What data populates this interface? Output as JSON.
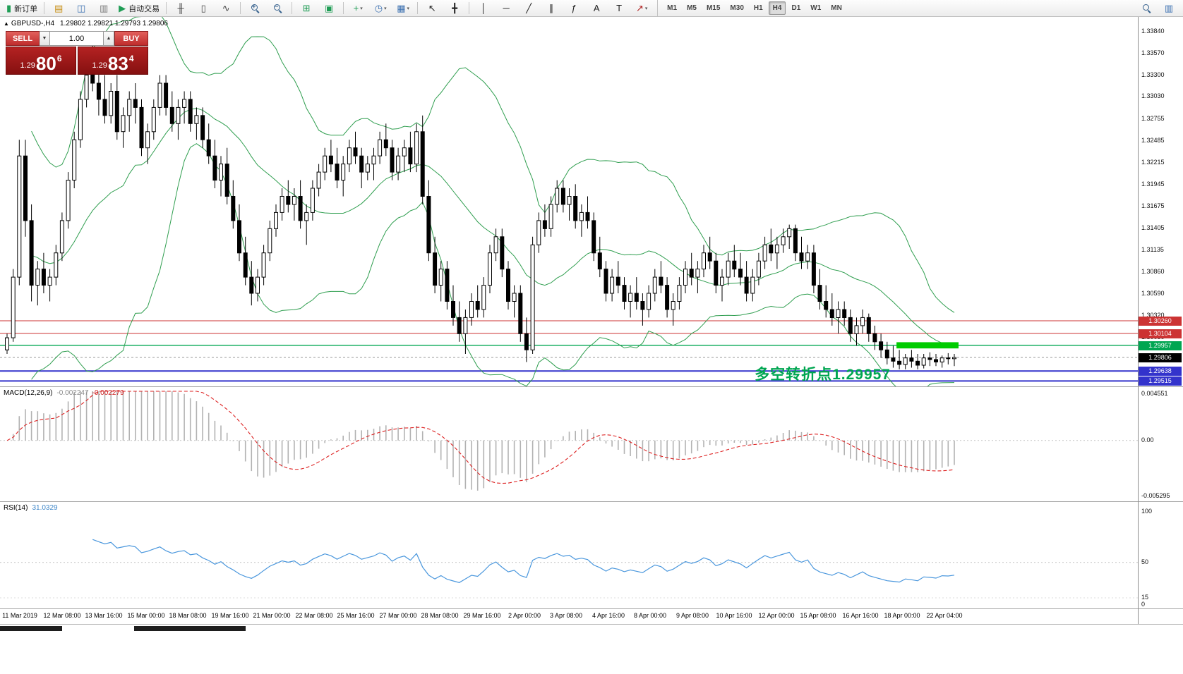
{
  "toolbar": {
    "groups": [
      {
        "items": [
          {
            "name": "new-order-button",
            "glyph": "▮",
            "glyph_color": "#1f9d55",
            "label": "新订单"
          }
        ]
      },
      {
        "items": [
          {
            "name": "market-watch-icon",
            "glyph": "▤",
            "glyph_color": "#c89018"
          },
          {
            "name": "data-window-icon",
            "glyph": "◫",
            "glyph_color": "#3a6fb0"
          },
          {
            "name": "navigator-icon",
            "glyph": "▥",
            "glyph_color": "#7a7a7a"
          },
          {
            "name": "autotrading-button",
            "glyph": "▶",
            "glyph_color": "#1f9d55",
            "label": "自动交易"
          }
        ]
      },
      {
        "items": [
          {
            "name": "bar-chart-icon",
            "glyph": "╫",
            "glyph_color": "#444444"
          },
          {
            "name": "candlestick-icon",
            "glyph": "▯",
            "glyph_color": "#444444"
          },
          {
            "name": "line-chart-icon",
            "glyph": "∿",
            "glyph_color": "#444444"
          }
        ]
      },
      {
        "items": [
          {
            "name": "zoom-in-icon",
            "css": "mag-plus"
          },
          {
            "name": "zoom-out-icon",
            "css": "mag-minus"
          }
        ]
      },
      {
        "items": [
          {
            "name": "tile-windows-icon",
            "glyph": "⊞",
            "glyph_color": "#1f9d55"
          },
          {
            "name": "cascade-windows-icon",
            "glyph": "▣",
            "glyph_color": "#1f9d55"
          }
        ]
      },
      {
        "items": [
          {
            "name": "indicators-icon",
            "glyph": "+",
            "glyph_color": "#1f9d55",
            "caret": true
          },
          {
            "name": "periods-icon",
            "glyph": "◷",
            "glyph_color": "#3a6fb0",
            "caret": true
          },
          {
            "name": "templates-icon",
            "glyph": "▦",
            "glyph_color": "#3a6fb0",
            "caret": true
          }
        ]
      },
      {
        "items": [
          {
            "name": "cursor-icon",
            "glyph": "↖",
            "glyph_color": "#222222"
          },
          {
            "name": "crosshair-icon",
            "glyph": "╋",
            "glyph_color": "#222222"
          }
        ]
      },
      {
        "items": [
          {
            "name": "vertical-line-icon",
            "glyph": "│",
            "glyph_color": "#222222"
          },
          {
            "name": "horizontal-line-icon",
            "glyph": "─",
            "glyph_color": "#222222"
          },
          {
            "name": "trendline-icon",
            "glyph": "╱",
            "glyph_color": "#222222"
          },
          {
            "name": "channel-icon",
            "glyph": "∥",
            "glyph_color": "#222222"
          },
          {
            "name": "fibonacci-icon",
            "glyph": "ƒ",
            "glyph_color": "#222222"
          },
          {
            "name": "text-icon",
            "glyph": "A",
            "glyph_color": "#222222"
          },
          {
            "name": "label-icon",
            "glyph": "T",
            "glyph_color": "#222222"
          },
          {
            "name": "arrows-icon",
            "glyph": "↗",
            "glyph_color": "#b02020",
            "caret": true
          }
        ]
      }
    ],
    "timeframes": [
      "M1",
      "M5",
      "M15",
      "M30",
      "H1",
      "H4",
      "D1",
      "W1",
      "MN"
    ],
    "active_timeframe": "H4",
    "right_items": [
      {
        "name": "search-icon",
        "css": "mag"
      },
      {
        "name": "chart-window-icon",
        "glyph": "▥",
        "glyph_color": "#3a6fb0"
      }
    ]
  },
  "chart": {
    "title": "GBPUSD-,H4",
    "title_icon": "▲",
    "ohlc": "1.29802 1.29821 1.29793 1.29806",
    "quote_panel": {
      "sell_button": "SELL",
      "buy_button": "BUY",
      "volume": "1.00",
      "volume_down_glyph": "▼",
      "volume_up_glyph": "▲",
      "sell_price": {
        "main": "1.29",
        "big": "80",
        "sup": "6"
      },
      "buy_price": {
        "main": "1.29",
        "big": "83",
        "sup": "4"
      }
    },
    "annotation": {
      "text": "多空转折点1.29957",
      "color": "#00a651"
    },
    "colors": {
      "band": "#2f9e4f",
      "up": "#ffffff",
      "down": "#000000",
      "highlight": "#00cc00"
    },
    "price_scale_labels": [
      "1.33840",
      "1.33570",
      "1.33300",
      "1.33030",
      "1.32755",
      "1.32485",
      "1.32215",
      "1.31945",
      "1.31675",
      "1.31405",
      "1.31135",
      "1.30860",
      "1.30590",
      "1.30320",
      "1.30050"
    ],
    "hlines": [
      {
        "price": 1.3026,
        "color": "#cc3333",
        "width": 1,
        "badge": "1.30260"
      },
      {
        "price": 1.30104,
        "color": "#cc3333",
        "width": 1,
        "badge": "1.30104"
      },
      {
        "price": 1.29957,
        "color": "#00a651",
        "width": 1.4,
        "badge": "1.29957"
      },
      {
        "price": 1.29638,
        "color": "#3333cc",
        "width": 2,
        "badge": "1.29638"
      },
      {
        "price": 1.29515,
        "color": "#3333cc",
        "width": 2,
        "badge": "1.29515"
      }
    ],
    "current_price": {
      "value": 1.29806,
      "badge": "1.29806"
    },
    "highlight": {
      "start_index": 146,
      "end_index": 155,
      "price_top": 1.29995,
      "price_bottom": 1.29918,
      "color": "#00cc00"
    }
  },
  "macd_panel": {
    "label": "MACD(12,26,9)",
    "value1": "-0.002247",
    "value2": "-0.002279",
    "scale_top": "0.004551",
    "scale_zero": "0.00",
    "scale_bottom": "-0.005295",
    "range_max": 0.004551,
    "range_min": -0.005295
  },
  "rsi_panel": {
    "label": "RSI(14)",
    "value": "31.0329",
    "scale": [
      "100",
      "50",
      "15",
      "0"
    ]
  },
  "time_axis": {
    "labels": [
      "11 Mar 2019",
      "12 Mar 08:00",
      "13 Mar 16:00",
      "15 Mar 00:00",
      "18 Mar 08:00",
      "19 Mar 16:00",
      "21 Mar 00:00",
      "22 Mar 08:00",
      "25 Mar 16:00",
      "27 Mar 00:00",
      "28 Mar 08:00",
      "29 Mar 16:00",
      "2 Apr 00:00",
      "3 Apr 08:00",
      "4 Apr 16:00",
      "8 Apr 00:00",
      "9 Apr 08:00",
      "10 Apr 16:00",
      "12 Apr 00:00",
      "15 Apr 08:00",
      "16 Apr 16:00",
      "18 Apr 00:00",
      "22 Apr 04:00"
    ]
  },
  "chart_data": {
    "type": "candlestick",
    "symbol": "GBPUSD-",
    "timeframe": "H4",
    "y_range": [
      1.2944,
      1.3402
    ],
    "overlays": {
      "bollinger": {
        "period": 20,
        "deviation": 2
      },
      "horizontal_lines": [
        1.3026,
        1.30104,
        1.29957,
        1.29638,
        1.29515
      ],
      "current_price": 1.29806
    },
    "indicator_panels": [
      {
        "type": "macd",
        "params": [
          12,
          26,
          9
        ],
        "values": [
          -0.002247,
          -0.002279
        ],
        "scale": [
          0.004551,
          0,
          -0.005295
        ]
      },
      {
        "type": "rsi",
        "params": [
          14
        ],
        "value": 31.0329,
        "scale": [
          100,
          50,
          15,
          0
        ]
      }
    ],
    "candles": [
      [
        1.299,
        1.301,
        1.2985,
        1.3005
      ],
      [
        1.3005,
        1.309,
        1.3,
        1.308
      ],
      [
        1.308,
        1.325,
        1.307,
        1.323
      ],
      [
        1.323,
        1.325,
        1.313,
        1.315
      ],
      [
        1.315,
        1.317,
        1.305,
        1.307
      ],
      [
        1.307,
        1.31,
        1.3045,
        1.309
      ],
      [
        1.309,
        1.311,
        1.306,
        1.307
      ],
      [
        1.307,
        1.309,
        1.305,
        1.308
      ],
      [
        1.308,
        1.312,
        1.307,
        1.311
      ],
      [
        1.311,
        1.316,
        1.31,
        1.315
      ],
      [
        1.315,
        1.321,
        1.314,
        1.32
      ],
      [
        1.32,
        1.326,
        1.319,
        1.325
      ],
      [
        1.325,
        1.331,
        1.324,
        1.33
      ],
      [
        1.33,
        1.334,
        1.329,
        1.333
      ],
      [
        1.333,
        1.338,
        1.331,
        1.332
      ],
      [
        1.332,
        1.334,
        1.328,
        1.33
      ],
      [
        1.33,
        1.333,
        1.327,
        1.328
      ],
      [
        1.328,
        1.332,
        1.327,
        1.331
      ],
      [
        1.331,
        1.333,
        1.325,
        1.326
      ],
      [
        1.326,
        1.329,
        1.324,
        1.328
      ],
      [
        1.328,
        1.331,
        1.326,
        1.33
      ],
      [
        1.33,
        1.332,
        1.327,
        1.329
      ],
      [
        1.329,
        1.33,
        1.323,
        1.324
      ],
      [
        1.324,
        1.327,
        1.322,
        1.326
      ],
      [
        1.326,
        1.33,
        1.325,
        1.329
      ],
      [
        1.329,
        1.333,
        1.328,
        1.332
      ],
      [
        1.332,
        1.333,
        1.328,
        1.329
      ],
      [
        1.329,
        1.331,
        1.326,
        1.327
      ],
      [
        1.327,
        1.33,
        1.325,
        1.329
      ],
      [
        1.329,
        1.331,
        1.327,
        1.33
      ],
      [
        1.33,
        1.331,
        1.326,
        1.327
      ],
      [
        1.327,
        1.329,
        1.325,
        1.328
      ],
      [
        1.328,
        1.329,
        1.324,
        1.325
      ],
      [
        1.325,
        1.327,
        1.322,
        1.323
      ],
      [
        1.323,
        1.325,
        1.319,
        1.32
      ],
      [
        1.32,
        1.323,
        1.318,
        1.322
      ],
      [
        1.322,
        1.324,
        1.317,
        1.318
      ],
      [
        1.318,
        1.32,
        1.314,
        1.315
      ],
      [
        1.315,
        1.317,
        1.31,
        1.311
      ],
      [
        1.311,
        1.313,
        1.307,
        1.308
      ],
      [
        1.308,
        1.31,
        1.3045,
        1.306
      ],
      [
        1.306,
        1.309,
        1.305,
        1.308
      ],
      [
        1.308,
        1.312,
        1.307,
        1.311
      ],
      [
        1.311,
        1.315,
        1.31,
        1.314
      ],
      [
        1.314,
        1.317,
        1.313,
        1.316
      ],
      [
        1.316,
        1.319,
        1.315,
        1.318
      ],
      [
        1.318,
        1.32,
        1.316,
        1.317
      ],
      [
        1.317,
        1.319,
        1.315,
        1.318
      ],
      [
        1.318,
        1.32,
        1.314,
        1.315
      ],
      [
        1.315,
        1.317,
        1.312,
        1.316
      ],
      [
        1.316,
        1.32,
        1.315,
        1.319
      ],
      [
        1.319,
        1.322,
        1.318,
        1.321
      ],
      [
        1.321,
        1.324,
        1.32,
        1.323
      ],
      [
        1.323,
        1.325,
        1.321,
        1.322
      ],
      [
        1.322,
        1.324,
        1.319,
        1.32
      ],
      [
        1.32,
        1.323,
        1.318,
        1.322
      ],
      [
        1.322,
        1.325,
        1.321,
        1.324
      ],
      [
        1.324,
        1.326,
        1.322,
        1.323
      ],
      [
        1.323,
        1.324,
        1.319,
        1.321
      ],
      [
        1.321,
        1.323,
        1.32,
        1.322
      ],
      [
        1.322,
        1.324,
        1.32,
        1.323
      ],
      [
        1.323,
        1.326,
        1.322,
        1.325
      ],
      [
        1.325,
        1.327,
        1.323,
        1.324
      ],
      [
        1.324,
        1.325,
        1.32,
        1.321
      ],
      [
        1.321,
        1.324,
        1.32,
        1.323
      ],
      [
        1.323,
        1.325,
        1.321,
        1.324
      ],
      [
        1.324,
        1.326,
        1.321,
        1.322
      ],
      [
        1.322,
        1.327,
        1.321,
        1.326
      ],
      [
        1.326,
        1.328,
        1.317,
        1.318
      ],
      [
        1.318,
        1.32,
        1.31,
        1.311
      ],
      [
        1.311,
        1.313,
        1.306,
        1.307
      ],
      [
        1.307,
        1.31,
        1.305,
        1.309
      ],
      [
        1.309,
        1.31,
        1.304,
        1.305
      ],
      [
        1.305,
        1.307,
        1.302,
        1.303
      ],
      [
        1.303,
        1.305,
        1.3,
        1.301
      ],
      [
        1.301,
        1.304,
        1.2985,
        1.303
      ],
      [
        1.303,
        1.306,
        1.302,
        1.305
      ],
      [
        1.305,
        1.307,
        1.303,
        1.304
      ],
      [
        1.304,
        1.308,
        1.303,
        1.307
      ],
      [
        1.307,
        1.312,
        1.306,
        1.311
      ],
      [
        1.311,
        1.314,
        1.31,
        1.313
      ],
      [
        1.313,
        1.314,
        1.308,
        1.309
      ],
      [
        1.309,
        1.31,
        1.304,
        1.305
      ],
      [
        1.305,
        1.307,
        1.303,
        1.306
      ],
      [
        1.306,
        1.307,
        1.3,
        1.301
      ],
      [
        1.301,
        1.303,
        1.2975,
        1.299
      ],
      [
        1.299,
        1.313,
        1.2985,
        1.312
      ],
      [
        1.312,
        1.316,
        1.311,
        1.315
      ],
      [
        1.315,
        1.317,
        1.313,
        1.314
      ],
      [
        1.314,
        1.318,
        1.313,
        1.317
      ],
      [
        1.317,
        1.32,
        1.316,
        1.319
      ],
      [
        1.319,
        1.32,
        1.316,
        1.317
      ],
      [
        1.317,
        1.319,
        1.315,
        1.318
      ],
      [
        1.318,
        1.3195,
        1.314,
        1.315
      ],
      [
        1.315,
        1.317,
        1.313,
        1.316
      ],
      [
        1.316,
        1.318,
        1.314,
        1.315
      ],
      [
        1.315,
        1.316,
        1.31,
        1.311
      ],
      [
        1.311,
        1.313,
        1.308,
        1.309
      ],
      [
        1.309,
        1.31,
        1.305,
        1.306
      ],
      [
        1.306,
        1.309,
        1.305,
        1.308
      ],
      [
        1.308,
        1.31,
        1.306,
        1.307
      ],
      [
        1.307,
        1.308,
        1.304,
        1.305
      ],
      [
        1.305,
        1.307,
        1.303,
        1.306
      ],
      [
        1.306,
        1.308,
        1.304,
        1.305
      ],
      [
        1.305,
        1.306,
        1.302,
        1.304
      ],
      [
        1.304,
        1.307,
        1.303,
        1.306
      ],
      [
        1.306,
        1.309,
        1.305,
        1.308
      ],
      [
        1.308,
        1.31,
        1.306,
        1.307
      ],
      [
        1.307,
        1.308,
        1.303,
        1.304
      ],
      [
        1.304,
        1.306,
        1.302,
        1.305
      ],
      [
        1.305,
        1.308,
        1.304,
        1.307
      ],
      [
        1.307,
        1.31,
        1.306,
        1.309
      ],
      [
        1.309,
        1.311,
        1.307,
        1.308
      ],
      [
        1.308,
        1.31,
        1.306,
        1.309
      ],
      [
        1.309,
        1.312,
        1.308,
        1.311
      ],
      [
        1.311,
        1.313,
        1.309,
        1.31
      ],
      [
        1.31,
        1.311,
        1.306,
        1.307
      ],
      [
        1.307,
        1.309,
        1.305,
        1.308
      ],
      [
        1.308,
        1.311,
        1.307,
        1.31
      ],
      [
        1.31,
        1.312,
        1.308,
        1.309
      ],
      [
        1.309,
        1.311,
        1.307,
        1.308
      ],
      [
        1.308,
        1.31,
        1.305,
        1.306
      ],
      [
        1.306,
        1.309,
        1.305,
        1.308
      ],
      [
        1.308,
        1.311,
        1.307,
        1.31
      ],
      [
        1.31,
        1.313,
        1.309,
        1.312
      ],
      [
        1.312,
        1.314,
        1.31,
        1.311
      ],
      [
        1.311,
        1.313,
        1.309,
        1.312
      ],
      [
        1.312,
        1.314,
        1.311,
        1.313
      ],
      [
        1.313,
        1.3145,
        1.3115,
        1.314
      ],
      [
        1.314,
        1.3145,
        1.31,
        1.311
      ],
      [
        1.311,
        1.313,
        1.309,
        1.31
      ],
      [
        1.31,
        1.312,
        1.309,
        1.311
      ],
      [
        1.311,
        1.312,
        1.306,
        1.307
      ],
      [
        1.307,
        1.309,
        1.304,
        1.305
      ],
      [
        1.305,
        1.307,
        1.303,
        1.304
      ],
      [
        1.304,
        1.306,
        1.302,
        1.303
      ],
      [
        1.303,
        1.305,
        1.301,
        1.304
      ],
      [
        1.304,
        1.305,
        1.302,
        1.303
      ],
      [
        1.303,
        1.304,
        1.3,
        1.301
      ],
      [
        1.301,
        1.303,
        1.2995,
        1.302
      ],
      [
        1.302,
        1.304,
        1.301,
        1.303
      ],
      [
        1.303,
        1.3035,
        1.3,
        1.301
      ],
      [
        1.301,
        1.302,
        1.299,
        1.3
      ],
      [
        1.3,
        1.301,
        1.298,
        1.299
      ],
      [
        1.299,
        1.3,
        1.2972,
        1.298
      ],
      [
        1.298,
        1.2995,
        1.2968,
        1.2976
      ],
      [
        1.2976,
        1.299,
        1.2966,
        1.2972
      ],
      [
        1.2972,
        1.2985,
        1.2966,
        1.298
      ],
      [
        1.298,
        1.299,
        1.2968,
        1.2976
      ],
      [
        1.2976,
        1.2985,
        1.2966,
        1.2971
      ],
      [
        1.2971,
        1.2985,
        1.2967,
        1.298
      ],
      [
        1.298,
        1.2987,
        1.297,
        1.2978
      ],
      [
        1.2978,
        1.2985,
        1.297,
        1.2975
      ],
      [
        1.2975,
        1.2983,
        1.2968,
        1.298
      ],
      [
        1.298,
        1.2986,
        1.2972,
        1.2979
      ],
      [
        1.2979,
        1.2985,
        1.297,
        1.29806
      ]
    ]
  }
}
